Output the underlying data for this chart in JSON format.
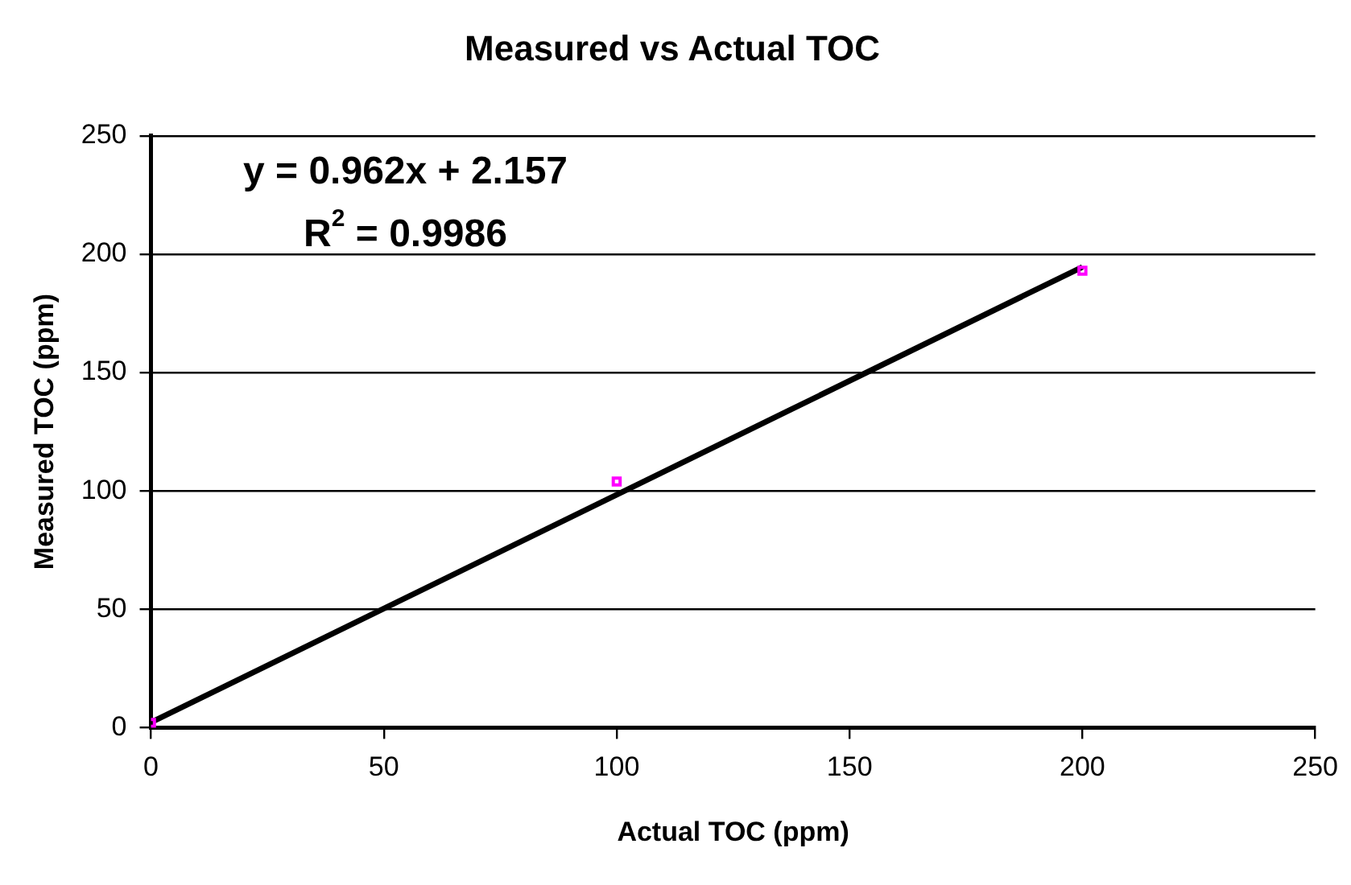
{
  "chart_data": {
    "type": "scatter",
    "title": "Measured vs Actual TOC",
    "xlabel": "Actual TOC (ppm)",
    "ylabel": "Measured TOC (ppm)",
    "x": [
      0,
      100,
      200
    ],
    "series": [
      {
        "type": "scatter",
        "color": "#ff00ff",
        "values": [
          2,
          104,
          193
        ],
        "marker": "square"
      },
      {
        "type": "line",
        "color": "#000000",
        "x": [
          0,
          200
        ],
        "values": [
          2.2,
          194.6
        ],
        "marker": "none"
      }
    ],
    "xlim": [
      0,
      250
    ],
    "xticks": [
      0,
      50,
      100,
      150,
      200,
      250
    ],
    "ylim": [
      0,
      250
    ],
    "yticks": [
      0,
      50,
      100,
      150,
      200,
      250
    ],
    "grid": "y",
    "legend": false,
    "annotations": [
      "y = 0.962x + 2.157",
      "R$^{2}$ = 0.9986"
    ]
  }
}
